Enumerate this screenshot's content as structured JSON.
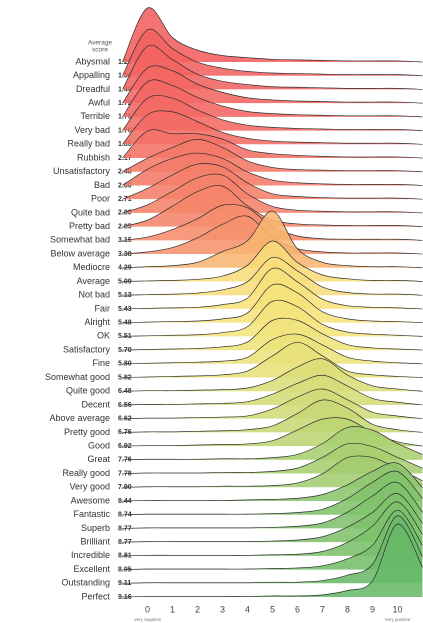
{
  "chart_data": {
    "type": "ridgeline",
    "header": [
      "Average",
      "score"
    ],
    "x_end_labels": [
      "Very negative",
      "Very positive"
    ],
    "xlim": [
      -1.1,
      10.9
    ],
    "xticks": [
      0,
      1,
      2,
      3,
      4,
      5,
      6,
      7,
      8,
      9,
      10
    ],
    "density_x": [
      -1,
      0,
      1,
      2,
      3,
      4,
      5,
      6,
      7,
      8,
      9,
      10,
      11
    ],
    "series": [
      {
        "name": "Abysmal",
        "score": 1.21,
        "score_label": "1.21",
        "color": "#f25f5f",
        "density": [
          0,
          1.0,
          0.45,
          0.22,
          0.12,
          0.08,
          0.05,
          0.04,
          0.03,
          0.02,
          0.02,
          0.02,
          0
        ]
      },
      {
        "name": "Appalling",
        "score": 1.34,
        "score_label": "1.34",
        "color": "#f26160",
        "density": [
          0,
          0.85,
          0.5,
          0.25,
          0.14,
          0.08,
          0.05,
          0.04,
          0.03,
          0.02,
          0.02,
          0.02,
          0
        ]
      },
      {
        "name": "Dreadful",
        "score": 1.44,
        "score_label": "1.44",
        "color": "#f26361",
        "density": [
          0,
          0.8,
          0.55,
          0.28,
          0.15,
          0.09,
          0.05,
          0.04,
          0.03,
          0.02,
          0.02,
          0.02,
          0
        ]
      },
      {
        "name": "Awful",
        "score": 1.72,
        "score_label": "1.72",
        "color": "#f36662",
        "density": [
          0,
          0.65,
          0.6,
          0.35,
          0.2,
          0.1,
          0.06,
          0.04,
          0.03,
          0.02,
          0.02,
          0.02,
          0
        ]
      },
      {
        "name": "Terrible",
        "score": 1.75,
        "score_label": "1.75",
        "color": "#f36763",
        "density": [
          0,
          0.65,
          0.58,
          0.36,
          0.2,
          0.1,
          0.06,
          0.04,
          0.03,
          0.02,
          0.02,
          0.02,
          0
        ]
      },
      {
        "name": "Very bad",
        "score": 1.76,
        "score_label": "1.76",
        "color": "#f36963",
        "density": [
          0,
          0.6,
          0.6,
          0.38,
          0.2,
          0.1,
          0.06,
          0.04,
          0.03,
          0.02,
          0.02,
          0.02,
          0
        ]
      },
      {
        "name": "Really bad",
        "score": 1.85,
        "score_label": "1.85",
        "color": "#f36b64",
        "density": [
          0,
          0.55,
          0.6,
          0.42,
          0.22,
          0.11,
          0.06,
          0.04,
          0.03,
          0.02,
          0.02,
          0.02,
          0
        ]
      },
      {
        "name": "Rubbish",
        "score": 2.17,
        "score_label": "2.17",
        "color": "#f47166",
        "density": [
          0,
          0.5,
          0.45,
          0.45,
          0.35,
          0.15,
          0.08,
          0.05,
          0.03,
          0.02,
          0.02,
          0.02,
          0
        ]
      },
      {
        "name": "Unsatisfactory",
        "score": 2.48,
        "score_label": "2.48",
        "color": "#f47767",
        "density": [
          0,
          0.25,
          0.45,
          0.6,
          0.45,
          0.2,
          0.08,
          0.04,
          0.03,
          0.02,
          0.02,
          0.02,
          0
        ]
      },
      {
        "name": "Bad",
        "score": 2.6,
        "score_label": "2.60",
        "color": "#f47a68",
        "density": [
          0,
          0.3,
          0.5,
          0.6,
          0.5,
          0.25,
          0.1,
          0.05,
          0.03,
          0.02,
          0.02,
          0.02,
          0
        ]
      },
      {
        "name": "Poor",
        "score": 2.71,
        "score_label": "2.71",
        "color": "#f57e69",
        "density": [
          0,
          0.2,
          0.45,
          0.65,
          0.6,
          0.3,
          0.1,
          0.05,
          0.03,
          0.02,
          0.02,
          0.02,
          0
        ]
      },
      {
        "name": "Quite bad",
        "score": 2.8,
        "score_label": "2.80",
        "color": "#f5826a",
        "density": [
          0,
          0.15,
          0.4,
          0.65,
          0.7,
          0.35,
          0.12,
          0.05,
          0.03,
          0.02,
          0.02,
          0.02,
          0
        ]
      },
      {
        "name": "Pretty bad",
        "score": 2.85,
        "score_label": "2.85",
        "color": "#f5846a",
        "density": [
          0,
          0.12,
          0.38,
          0.65,
          0.75,
          0.38,
          0.12,
          0.05,
          0.03,
          0.02,
          0.02,
          0.02,
          0
        ]
      },
      {
        "name": "Somewhat bad",
        "score": 3.16,
        "score_label": "3.16",
        "color": "#f68c6c",
        "density": [
          0,
          0.06,
          0.2,
          0.4,
          0.65,
          0.6,
          0.25,
          0.08,
          0.03,
          0.02,
          0.02,
          0.02,
          0
        ]
      },
      {
        "name": "Below average",
        "score": 3.38,
        "score_label": "3.38",
        "color": "#f6926d",
        "density": [
          0,
          0.04,
          0.12,
          0.3,
          0.55,
          0.7,
          0.3,
          0.1,
          0.04,
          0.02,
          0.02,
          0.02,
          0
        ]
      },
      {
        "name": "Mediocre",
        "score": 4.29,
        "score_label": "4.29",
        "color": "#f7b571",
        "density": [
          0,
          0.02,
          0.04,
          0.1,
          0.3,
          0.5,
          1.05,
          0.35,
          0.1,
          0.04,
          0.02,
          0.02,
          0
        ]
      },
      {
        "name": "Average",
        "score": 5.09,
        "score_label": "5.09",
        "color": "#f8dc7a",
        "density": [
          0,
          0.01,
          0.02,
          0.04,
          0.1,
          0.3,
          0.75,
          0.35,
          0.12,
          0.05,
          0.02,
          0.02,
          0
        ]
      },
      {
        "name": "Not bad",
        "score": 5.13,
        "score_label": "5.13",
        "color": "#f8dd7b",
        "density": [
          0,
          0.01,
          0.02,
          0.04,
          0.1,
          0.25,
          0.7,
          0.45,
          0.15,
          0.05,
          0.02,
          0.02,
          0
        ]
      },
      {
        "name": "Fair",
        "score": 5.43,
        "score_label": "5.43",
        "color": "#f7e17c",
        "density": [
          0,
          0.01,
          0.02,
          0.03,
          0.08,
          0.2,
          0.75,
          0.5,
          0.18,
          0.06,
          0.03,
          0.02,
          0
        ]
      },
      {
        "name": "Alright",
        "score": 5.48,
        "score_label": "5.48",
        "color": "#f6e27c",
        "density": [
          0,
          0.01,
          0.02,
          0.03,
          0.07,
          0.18,
          0.7,
          0.55,
          0.2,
          0.07,
          0.03,
          0.02,
          0
        ]
      },
      {
        "name": "OK",
        "score": 5.51,
        "score_label": "5.51",
        "color": "#f5e37c",
        "density": [
          0,
          0.01,
          0.02,
          0.03,
          0.07,
          0.18,
          0.65,
          0.55,
          0.22,
          0.08,
          0.04,
          0.02,
          0
        ]
      },
      {
        "name": "Satisfactory",
        "score": 5.7,
        "score_label": "5.70",
        "color": "#f0e37b",
        "density": [
          0,
          0.01,
          0.02,
          0.03,
          0.06,
          0.15,
          0.55,
          0.55,
          0.3,
          0.1,
          0.04,
          0.02,
          0
        ]
      },
      {
        "name": "Fine",
        "score": 5.8,
        "score_label": "5.80",
        "color": "#ebe27b",
        "density": [
          0,
          0.01,
          0.02,
          0.03,
          0.05,
          0.12,
          0.45,
          0.55,
          0.35,
          0.12,
          0.05,
          0.02,
          0
        ]
      },
      {
        "name": "Somewhat good",
        "score": 5.82,
        "score_label": "5.82",
        "color": "#e8e17a",
        "density": [
          0,
          0.01,
          0.02,
          0.03,
          0.05,
          0.12,
          0.4,
          0.65,
          0.4,
          0.12,
          0.05,
          0.02,
          0
        ]
      },
      {
        "name": "Quite good",
        "score": 6.48,
        "score_label": "6.48",
        "color": "#d9dd78",
        "density": [
          0,
          0.01,
          0.01,
          0.02,
          0.03,
          0.06,
          0.2,
          0.45,
          0.6,
          0.3,
          0.1,
          0.04,
          0
        ]
      },
      {
        "name": "Decent",
        "score": 6.56,
        "score_label": "6.56",
        "color": "#d5dc77",
        "density": [
          0,
          0.01,
          0.01,
          0.02,
          0.03,
          0.06,
          0.2,
          0.4,
          0.55,
          0.35,
          0.12,
          0.05,
          0
        ]
      },
      {
        "name": "Above average",
        "score": 6.62,
        "score_label": "6.62",
        "color": "#d0da76",
        "density": [
          0,
          0.01,
          0.01,
          0.02,
          0.03,
          0.05,
          0.18,
          0.4,
          0.55,
          0.35,
          0.12,
          0.05,
          0
        ]
      },
      {
        "name": "Pretty good",
        "score": 6.76,
        "score_label": "6.76",
        "color": "#c8d875",
        "density": [
          0,
          0.01,
          0.01,
          0.02,
          0.03,
          0.05,
          0.12,
          0.35,
          0.6,
          0.45,
          0.15,
          0.05,
          0
        ]
      },
      {
        "name": "Good",
        "score": 6.92,
        "score_label": "6.92",
        "color": "#bdd573",
        "density": [
          0,
          0.01,
          0.01,
          0.02,
          0.03,
          0.04,
          0.1,
          0.3,
          0.5,
          0.5,
          0.25,
          0.08,
          0
        ]
      },
      {
        "name": "Great",
        "score": 7.76,
        "score_label": "7.76",
        "color": "#a9cf70",
        "density": [
          0,
          0.01,
          0.01,
          0.01,
          0.02,
          0.02,
          0.04,
          0.1,
          0.3,
          0.6,
          0.55,
          0.3,
          0.1
        ]
      },
      {
        "name": "Really good",
        "score": 7.78,
        "score_label": "7.78",
        "color": "#a7ce6f",
        "density": [
          0,
          0.01,
          0.01,
          0.01,
          0.02,
          0.02,
          0.04,
          0.1,
          0.3,
          0.55,
          0.5,
          0.3,
          0.1
        ]
      },
      {
        "name": "Very good",
        "score": 7.9,
        "score_label": "7.90",
        "color": "#a2cc6f",
        "density": [
          0,
          0.01,
          0.01,
          0.01,
          0.02,
          0.02,
          0.03,
          0.08,
          0.25,
          0.55,
          0.55,
          0.35,
          0.12
        ]
      },
      {
        "name": "Awesome",
        "score": 8.44,
        "score_label": "8.44",
        "color": "#8cc56c",
        "density": [
          0,
          0.01,
          0.01,
          0.01,
          0.01,
          0.02,
          0.03,
          0.05,
          0.12,
          0.3,
          0.55,
          0.7,
          0.25
        ]
      },
      {
        "name": "Fantastic",
        "score": 8.74,
        "score_label": "8.74",
        "color": "#82c26b",
        "density": [
          0,
          0.01,
          0.01,
          0.01,
          0.01,
          0.01,
          0.02,
          0.04,
          0.1,
          0.3,
          0.6,
          0.8,
          0.3
        ]
      },
      {
        "name": "Superb",
        "score": 8.77,
        "score_label": "8.77",
        "color": "#7fc16b",
        "density": [
          0,
          0.01,
          0.01,
          0.01,
          0.01,
          0.01,
          0.02,
          0.04,
          0.1,
          0.3,
          0.6,
          0.85,
          0.3
        ]
      },
      {
        "name": "Brilliant",
        "score": 8.77,
        "score_label": "8.77",
        "color": "#7fc16b",
        "density": [
          0,
          0.01,
          0.01,
          0.01,
          0.01,
          0.01,
          0.02,
          0.04,
          0.1,
          0.28,
          0.55,
          0.9,
          0.35
        ]
      },
      {
        "name": "Incredible",
        "score": 8.81,
        "score_label": "8.81",
        "color": "#7cc06a",
        "density": [
          0,
          0.01,
          0.01,
          0.01,
          0.01,
          0.01,
          0.02,
          0.03,
          0.08,
          0.25,
          0.55,
          1.0,
          0.4
        ]
      },
      {
        "name": "Excellent",
        "score": 8.95,
        "score_label": "8.95",
        "color": "#74bd6a",
        "density": [
          0,
          0.01,
          0.01,
          0.01,
          0.01,
          0.01,
          0.02,
          0.03,
          0.07,
          0.2,
          0.45,
          1.1,
          0.45
        ]
      },
      {
        "name": "Outstanding",
        "score": 9.11,
        "score_label": "9.11",
        "color": "#6bba69",
        "density": [
          0,
          0.01,
          0.01,
          0.01,
          0.01,
          0.01,
          0.02,
          0.02,
          0.05,
          0.15,
          0.35,
          1.25,
          0.5
        ]
      },
      {
        "name": "Perfect",
        "score": 9.16,
        "score_label": "9.16",
        "color": "#68b969",
        "density": [
          0,
          0.01,
          0.01,
          0.01,
          0.01,
          0.01,
          0.02,
          0.02,
          0.04,
          0.12,
          0.3,
          1.35,
          0.55
        ]
      }
    ]
  }
}
